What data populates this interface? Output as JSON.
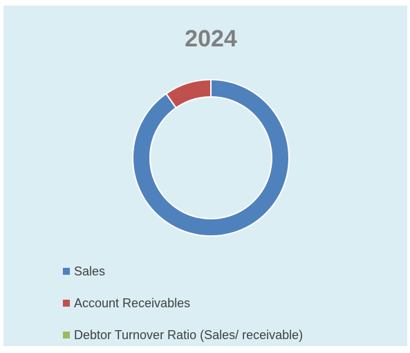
{
  "chart_data": {
    "type": "doughnut",
    "title": "2024",
    "categories": [
      "Sales",
      "Account Receivables",
      "Debtor Turnover Ratio (Sales/ receivable)"
    ],
    "values": [
      90.3,
      9.7,
      0
    ],
    "colors": [
      "#4f81bd",
      "#c0504d",
      "#9bbb59"
    ],
    "legend": "bottom-left"
  }
}
